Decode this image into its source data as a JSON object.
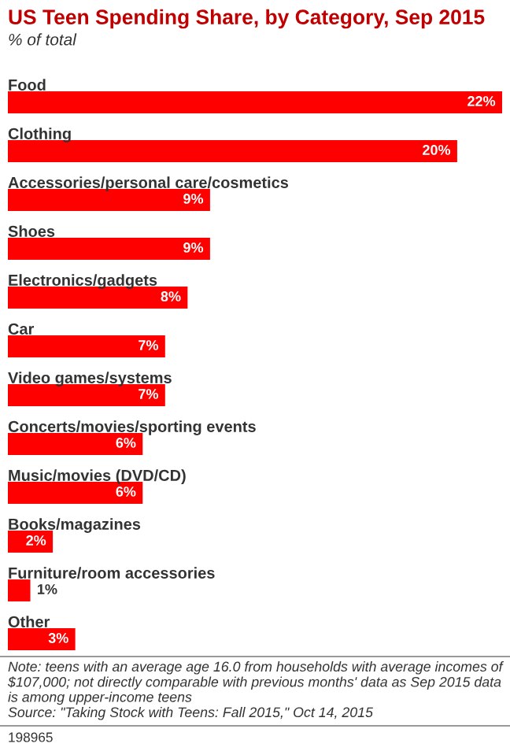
{
  "chart_data": {
    "type": "bar",
    "orientation": "horizontal",
    "title": "US Teen Spending Share, by Category, Sep 2015",
    "subtitle": "% of total",
    "categories": [
      "Food",
      "Clothing",
      "Accessories/personal care/cosmetics",
      "Shoes",
      "Electronics/gadgets",
      "Car",
      "Video games/systems",
      "Concerts/movies/sporting events",
      "Music/movies (DVD/CD)",
      "Books/magazines",
      "Furniture/room accessories",
      "Other"
    ],
    "values": [
      22,
      20,
      9,
      9,
      8,
      7,
      7,
      6,
      6,
      2,
      1,
      3
    ],
    "value_labels": [
      "22%",
      "20%",
      "9%",
      "9%",
      "8%",
      "7%",
      "7%",
      "6%",
      "6%",
      "2%",
      "1%",
      "3%"
    ],
    "color": "#ff0000",
    "annotations": [
      "Note: teens with an average age 16.0 from households with average incomes of $107,000; not directly comparable with previous months' data as Sep 2015 data is among upper-income teens",
      "Source: \"Taking Stock with Teens: Fall 2015,\" Oct 14, 2015",
      "198965"
    ]
  }
}
